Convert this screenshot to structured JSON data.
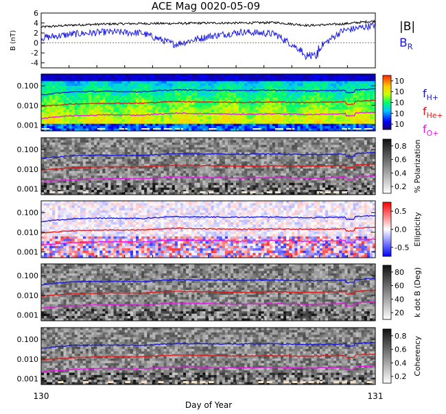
{
  "title": "ACE Mag 0020-05-09",
  "x_axis": {
    "label": "Day of Year",
    "ticks": [
      "130",
      "131"
    ]
  },
  "colors": {
    "B_total": "#000000",
    "B_R": "#1a1ae6",
    "fH": "#1414dc",
    "fHe": "#e61414",
    "fO": "#e614e6",
    "cyan": "#00c8c8"
  },
  "panels": [
    {
      "id": "B",
      "ylabel": "B (nT)",
      "yticks": [
        "6",
        "4",
        "2",
        "0",
        "-2",
        "-4"
      ],
      "legend": [
        {
          "text": "|B|",
          "sub": ""
        },
        {
          "text": "B",
          "sub": "R"
        }
      ]
    },
    {
      "id": "psd",
      "yticks": [
        "0.100",
        "0.010",
        "0.001"
      ],
      "colorbar": {
        "type": "rainbow",
        "ticks": [
          "10",
          "10",
          "10",
          "10",
          "10"
        ]
      },
      "legend": [
        {
          "text": "f",
          "sub": "H+"
        },
        {
          "text": "f",
          "sub": "He+"
        },
        {
          "text": "f",
          "sub": "O+"
        }
      ]
    },
    {
      "id": "polarization",
      "yticks": [
        "0.100",
        "0.010",
        "0.001"
      ],
      "colorbar": {
        "type": "gray",
        "ticks": [
          "0.8",
          "0.6",
          "0.4",
          "0.2"
        ],
        "label": "% Polarization"
      }
    },
    {
      "id": "ellipticity",
      "yticks": [
        "0.100",
        "0.010",
        "0.001"
      ],
      "colorbar": {
        "type": "bwr",
        "ticks": [
          "0.5",
          "0.0",
          "-0.5"
        ],
        "label": "Ellipticity"
      }
    },
    {
      "id": "kdotb",
      "yticks": [
        "0.100",
        "0.010",
        "0.001"
      ],
      "colorbar": {
        "type": "gray",
        "ticks": [
          "80",
          "60",
          "40",
          "20"
        ],
        "label": "k dot B (Deg)"
      }
    },
    {
      "id": "coherency",
      "yticks": [
        "0.100",
        "0.010",
        "0.001"
      ],
      "colorbar": {
        "type": "gray",
        "ticks": [
          "0.8",
          "0.6",
          "0.4",
          "0.2"
        ],
        "label": "Coherency"
      }
    }
  ],
  "chart_data": {
    "type": "line",
    "title": "ACE Mag 0020-05-09",
    "xlabel": "Day of Year",
    "xlim": [
      130,
      131
    ],
    "top_panel": {
      "ylabel": "B (nT)",
      "ylim": [
        -5,
        6
      ],
      "series": [
        {
          "name": "|B|",
          "x": [
            130.0,
            130.1,
            130.2,
            130.3,
            130.4,
            130.5,
            130.6,
            130.7,
            130.8,
            130.9,
            131.0
          ],
          "values": [
            3.2,
            3.6,
            3.8,
            3.9,
            3.9,
            4.0,
            4.0,
            4.1,
            3.5,
            3.8,
            4.4
          ]
        },
        {
          "name": "B_R",
          "x": [
            130.0,
            130.1,
            130.2,
            130.3,
            130.4,
            130.5,
            130.6,
            130.7,
            130.8,
            130.9,
            131.0
          ],
          "values": [
            1.0,
            1.8,
            2.2,
            2.0,
            -0.3,
            1.3,
            2.2,
            1.8,
            -2.4,
            2.4,
            3.6
          ]
        }
      ]
    },
    "frequency_panels": {
      "yscale": "log",
      "ylim": [
        0.0005,
        0.4
      ],
      "series": [
        {
          "name": "fH+",
          "x": [
            130.0,
            130.1,
            130.2,
            130.3,
            130.4,
            130.5,
            130.6,
            130.7,
            130.8,
            130.9,
            131.0
          ],
          "values": [
            0.035,
            0.05,
            0.052,
            0.05,
            0.062,
            0.06,
            0.058,
            0.06,
            0.055,
            0.058,
            0.07
          ]
        },
        {
          "name": "fHe+",
          "x": [
            130.0,
            130.1,
            130.2,
            130.3,
            130.4,
            130.5,
            130.6,
            130.7,
            130.8,
            130.9,
            131.0
          ],
          "values": [
            0.009,
            0.012,
            0.013,
            0.013,
            0.016,
            0.015,
            0.014,
            0.015,
            0.014,
            0.015,
            0.018
          ]
        },
        {
          "name": "fO+",
          "x": [
            130.0,
            130.1,
            130.2,
            130.3,
            130.4,
            130.5,
            130.6,
            130.7,
            130.8,
            130.9,
            131.0
          ],
          "values": [
            0.0022,
            0.003,
            0.0033,
            0.0032,
            0.004,
            0.0038,
            0.0035,
            0.0038,
            0.0034,
            0.0038,
            0.0045
          ]
        }
      ]
    }
  }
}
